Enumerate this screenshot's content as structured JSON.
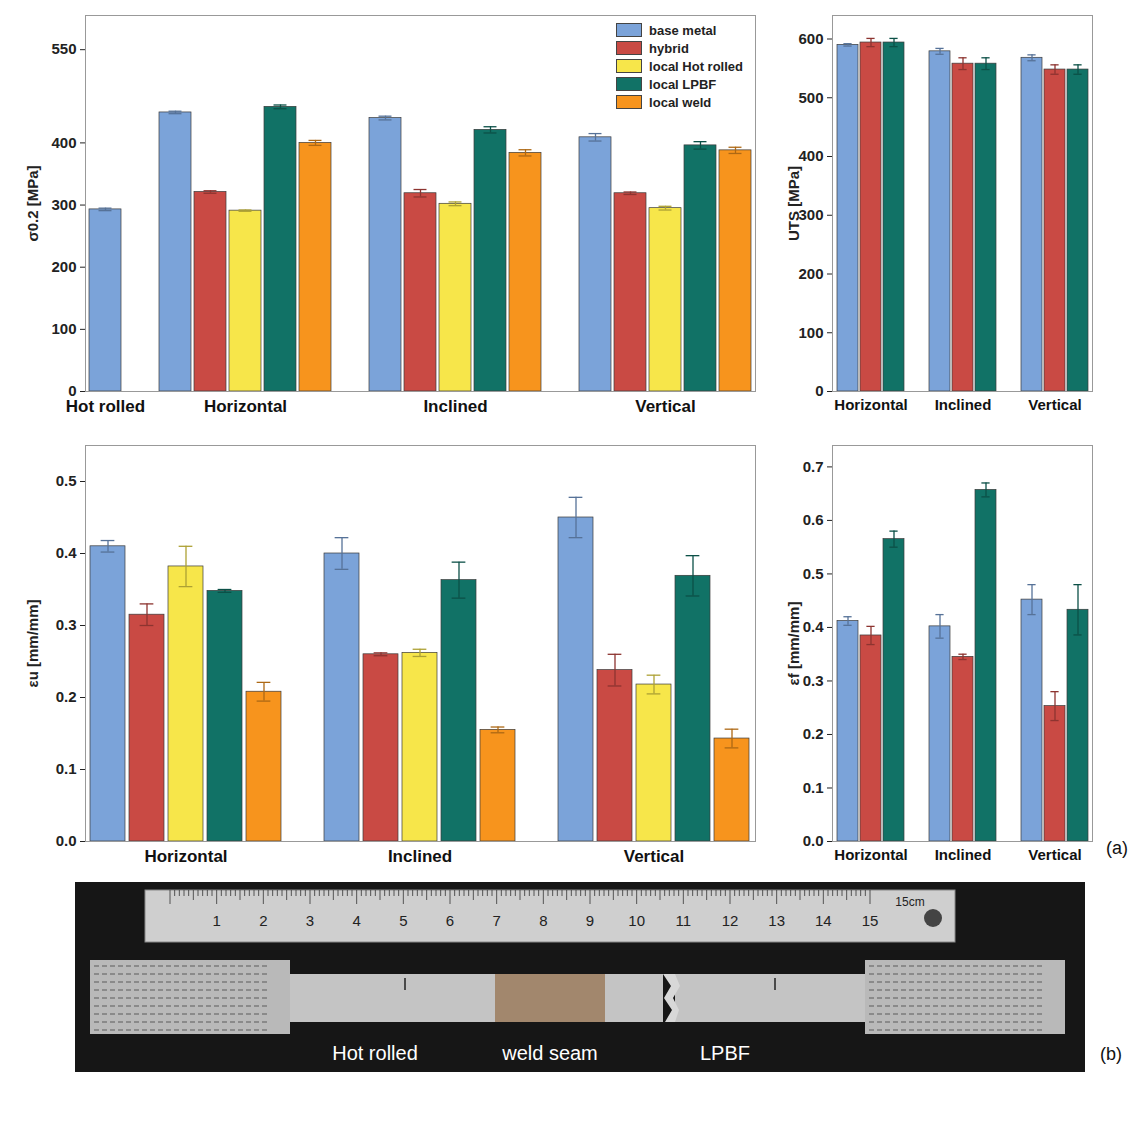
{
  "chart_data": [
    {
      "type": "bar",
      "y_label": "σ0.2 [MPa]",
      "categories": [
        "Hot rolled",
        "Horizontal",
        "Inclined",
        "Vertical"
      ],
      "ylim": [
        0,
        605
      ],
      "yticks": [
        0,
        100,
        200,
        300,
        400,
        550
      ],
      "legend": "top-right",
      "series": [
        {
          "name": "base metal",
          "color": "#7ba3d9",
          "values": [
            293,
            449,
            440,
            409
          ],
          "errors": [
            2,
            2,
            3,
            6
          ]
        },
        {
          "name": "hybrid",
          "color": "#c94a44",
          "values": [
            null,
            321,
            319,
            319
          ],
          "errors": [
            null,
            2,
            6,
            2
          ]
        },
        {
          "name": "local Hot rolled",
          "color": "#f7e64a",
          "values": [
            null,
            291,
            302,
            295
          ],
          "errors": [
            null,
            1,
            3,
            3
          ]
        },
        {
          "name": "local LPBF",
          "color": "#117266",
          "values": [
            null,
            458,
            421,
            396
          ],
          "errors": [
            null,
            3,
            5,
            6
          ]
        },
        {
          "name": "local weld",
          "color": "#f7941d",
          "values": [
            null,
            400,
            384,
            388
          ],
          "errors": [
            null,
            4,
            5,
            5
          ]
        }
      ]
    },
    {
      "type": "bar",
      "y_label": "UTS [MPa]",
      "categories": [
        "Horizontal",
        "Inclined",
        "Vertical"
      ],
      "ylim": [
        0,
        640
      ],
      "yticks": [
        0,
        100,
        200,
        300,
        400,
        500,
        600
      ],
      "legend": "none",
      "series": [
        {
          "name": "base metal",
          "color": "#7ba3d9",
          "values": [
            590,
            579,
            568
          ],
          "errors": [
            2,
            5,
            5
          ]
        },
        {
          "name": "hybrid",
          "color": "#c94a44",
          "values": [
            594,
            558,
            548
          ],
          "errors": [
            7,
            10,
            8
          ]
        },
        {
          "name": "local LPBF",
          "color": "#117266",
          "values": [
            594,
            558,
            548
          ],
          "errors": [
            7,
            10,
            8
          ]
        }
      ]
    },
    {
      "type": "bar",
      "y_label": "εu [mm/mm]",
      "categories": [
        "Horizontal",
        "Inclined",
        "Vertical"
      ],
      "ylim": [
        0,
        0.55
      ],
      "yticks": [
        {
          "value": 0,
          "label": "0.0"
        },
        0.1,
        0.2,
        0.3,
        0.4,
        0.5
      ],
      "legend": "none",
      "series": [
        {
          "name": "base metal",
          "color": "#7ba3d9",
          "values": [
            0.41,
            0.4,
            0.45
          ],
          "errors": [
            0.008,
            0.022,
            0.028
          ]
        },
        {
          "name": "hybrid",
          "color": "#c94a44",
          "values": [
            0.315,
            0.26,
            0.238
          ],
          "errors": [
            0.015,
            0.002,
            0.022
          ]
        },
        {
          "name": "local Hot rolled",
          "color": "#f7e64a",
          "values": [
            0.382,
            0.262,
            0.218
          ],
          "errors": [
            0.028,
            0.005,
            0.013
          ]
        },
        {
          "name": "local LPBF",
          "color": "#117266",
          "values": [
            0.348,
            0.363,
            0.369
          ],
          "errors": [
            0.002,
            0.025,
            0.028
          ]
        },
        {
          "name": "local weld",
          "color": "#f7941d",
          "values": [
            0.208,
            0.155,
            0.143
          ],
          "errors": [
            0.013,
            0.004,
            0.013
          ]
        }
      ]
    },
    {
      "type": "bar",
      "y_label": "εf [mm/mm]",
      "categories": [
        "Horizontal",
        "Inclined",
        "Vertical"
      ],
      "ylim": [
        0,
        0.74
      ],
      "yticks": [
        {
          "value": 0,
          "label": "0.0"
        },
        0.1,
        0.2,
        0.3,
        0.4,
        0.5,
        0.6,
        0.7
      ],
      "legend": "none",
      "series": [
        {
          "name": "base metal",
          "color": "#7ba3d9",
          "values": [
            0.412,
            0.402,
            0.452
          ],
          "errors": [
            0.008,
            0.022,
            0.028
          ]
        },
        {
          "name": "hybrid",
          "color": "#c94a44",
          "values": [
            0.385,
            0.345,
            0.253
          ],
          "errors": [
            0.017,
            0.005,
            0.027
          ]
        },
        {
          "name": "local LPBF",
          "color": "#117266",
          "values": [
            0.565,
            0.657,
            0.433
          ],
          "errors": [
            0.015,
            0.013,
            0.047
          ]
        }
      ]
    }
  ],
  "figure": {
    "panel_label_a": "(a)",
    "panel_label_b": "(b)",
    "photo": {
      "labels": [
        "Hot rolled",
        "weld seam",
        "LPBF"
      ],
      "ruler": {
        "ticks": [
          1,
          2,
          3,
          4,
          5,
          6,
          7,
          8,
          9,
          10,
          11,
          12,
          13,
          14,
          15
        ],
        "unit_label": "15cm"
      }
    }
  }
}
